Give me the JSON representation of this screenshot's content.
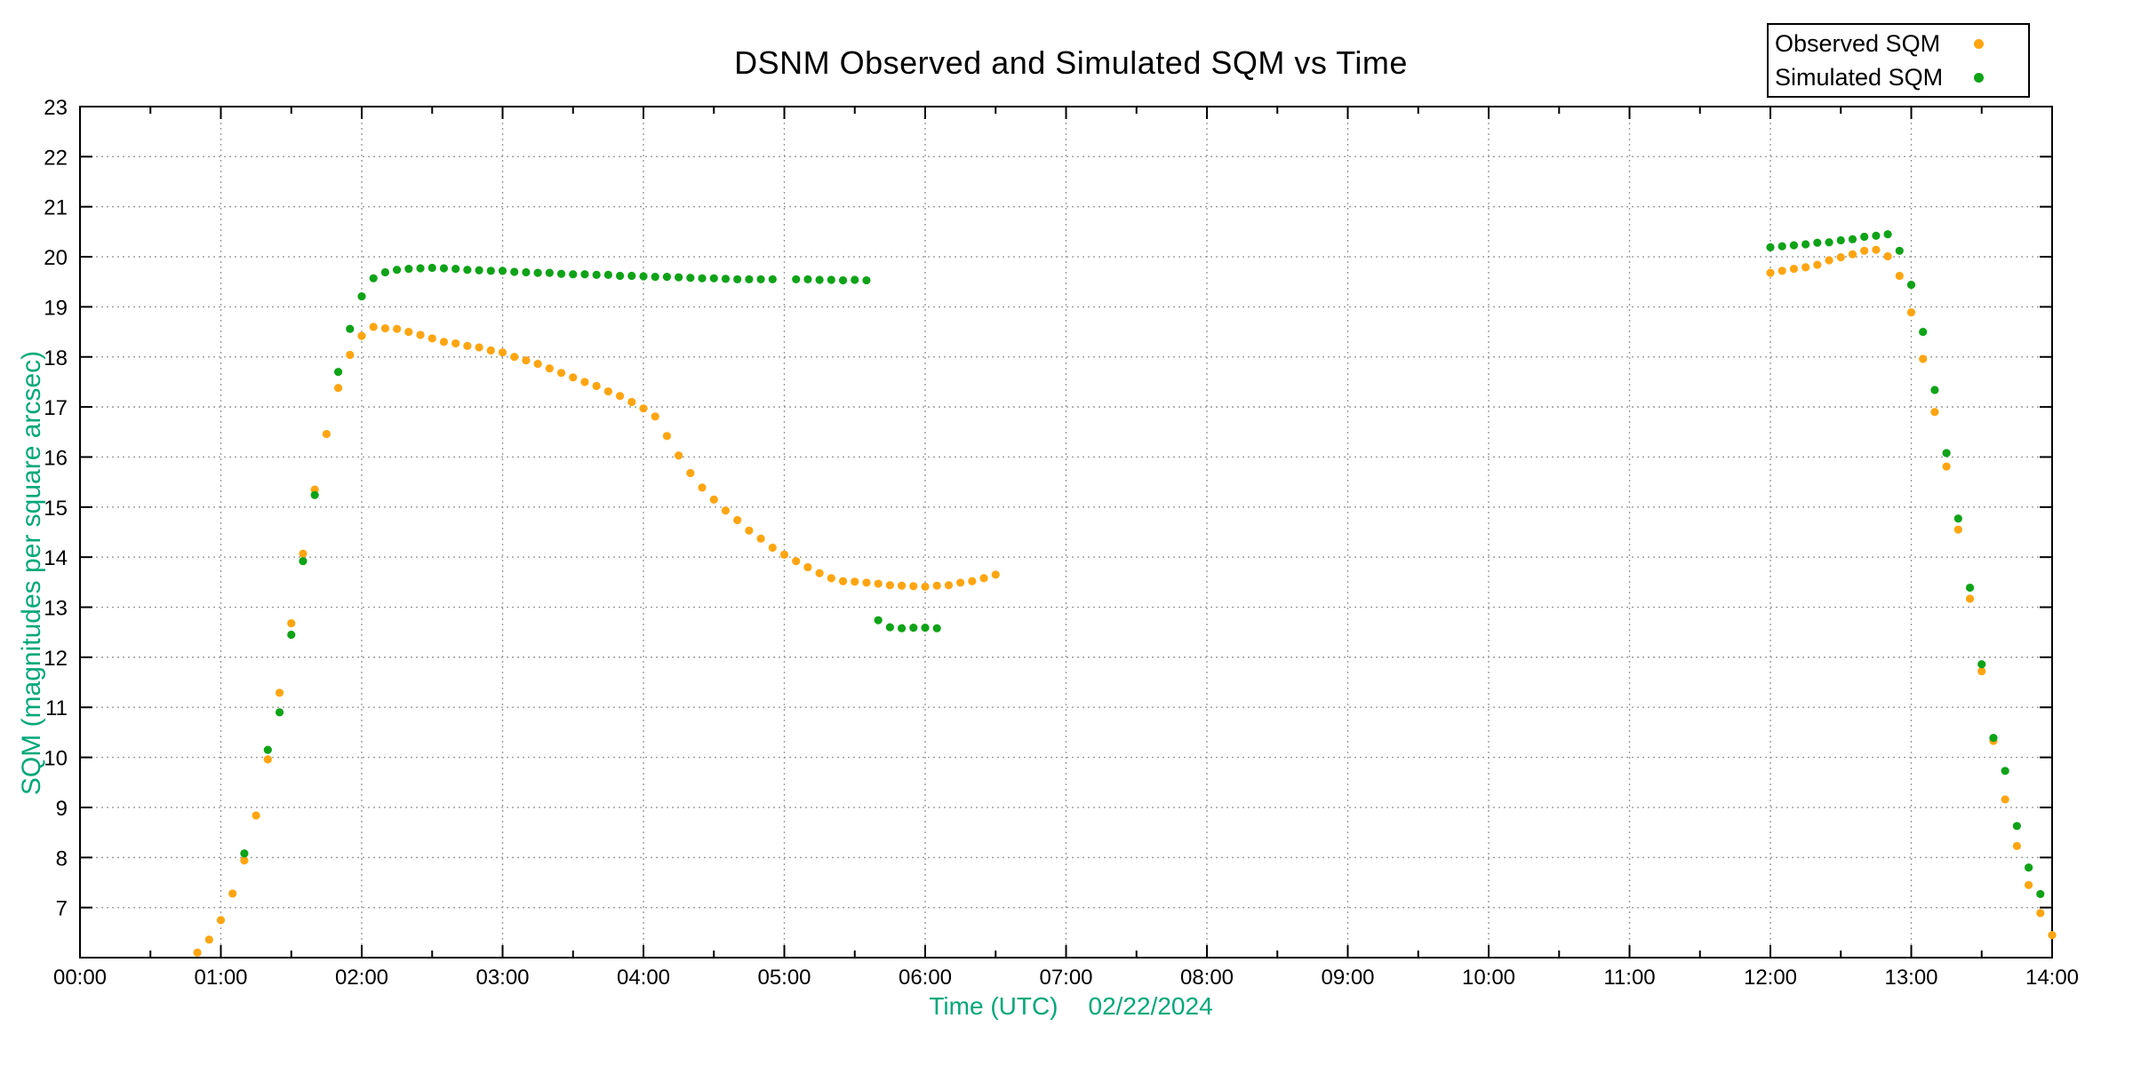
{
  "title": "DSNM Observed and Simulated SQM vs Time",
  "legend": [
    {
      "label": "Observed SQM",
      "color": "#ffa511"
    },
    {
      "label": "Simulated SQM",
      "color": "#0fa317"
    }
  ],
  "axes": {
    "x_label_prefix": "Time (UTC)",
    "x_label_date": "02/22/2024",
    "y_label": "SQM (magnitudes per square arcsec)",
    "x_ticks": [
      "00:00",
      "01:00",
      "02:00",
      "03:00",
      "04:00",
      "05:00",
      "06:00",
      "07:00",
      "08:00",
      "09:00",
      "10:00",
      "11:00",
      "12:00",
      "13:00",
      "14:00"
    ],
    "y_ticks": [
      7,
      8,
      9,
      10,
      11,
      12,
      13,
      14,
      15,
      16,
      17,
      18,
      19,
      20,
      21,
      22,
      23
    ]
  },
  "colors": {
    "axis_label": "#00a878",
    "grid": "#9c9c9c",
    "border": "#000000",
    "tick_text": "#000000"
  },
  "chart_data": {
    "type": "scatter",
    "title": "DSNM Observed and Simulated SQM vs Time",
    "xlabel": "Time (UTC)   02/22/2024",
    "ylabel": "SQM (magnitudes per square arcsec)",
    "x_unit": "HH:MM UTC",
    "xlim_hours": [
      0,
      14
    ],
    "ylim": [
      6,
      23
    ],
    "grid": "dotted, at hour and integer-magnitude lines",
    "legend_position": "top-right, outside plot",
    "series": [
      {
        "name": "Observed SQM",
        "color": "#ffa511",
        "marker": "filled-circle",
        "points": [
          [
            "00:50",
            6.1
          ],
          [
            "00:55",
            6.36
          ],
          [
            "01:00",
            6.75
          ],
          [
            "01:05",
            7.28
          ],
          [
            "01:10",
            7.94
          ],
          [
            "01:15",
            8.84
          ],
          [
            "01:20",
            9.96
          ],
          [
            "01:25",
            11.29
          ],
          [
            "01:30",
            12.68
          ],
          [
            "01:35",
            14.07
          ],
          [
            "01:40",
            15.35
          ],
          [
            "01:45",
            16.46
          ],
          [
            "01:50",
            17.38
          ],
          [
            "01:55",
            18.04
          ],
          [
            "02:00",
            18.42
          ],
          [
            "02:05",
            18.6
          ],
          [
            "02:10",
            18.57
          ],
          [
            "02:15",
            18.56
          ],
          [
            "02:20",
            18.5
          ],
          [
            "02:25",
            18.44
          ],
          [
            "02:30",
            18.37
          ],
          [
            "02:35",
            18.3
          ],
          [
            "02:40",
            18.27
          ],
          [
            "02:45",
            18.22
          ],
          [
            "02:50",
            18.19
          ],
          [
            "02:55",
            18.13
          ],
          [
            "03:00",
            18.09
          ],
          [
            "03:05",
            18.0
          ],
          [
            "03:10",
            17.93
          ],
          [
            "03:15",
            17.86
          ],
          [
            "03:20",
            17.77
          ],
          [
            "03:25",
            17.68
          ],
          [
            "03:30",
            17.59
          ],
          [
            "03:35",
            17.5
          ],
          [
            "03:40",
            17.42
          ],
          [
            "03:45",
            17.31
          ],
          [
            "03:50",
            17.22
          ],
          [
            "03:55",
            17.1
          ],
          [
            "04:00",
            16.97
          ],
          [
            "04:05",
            16.81
          ],
          [
            "04:10",
            16.42
          ],
          [
            "04:15",
            16.03
          ],
          [
            "04:20",
            15.68
          ],
          [
            "04:25",
            15.39
          ],
          [
            "04:30",
            15.15
          ],
          [
            "04:35",
            14.93
          ],
          [
            "04:40",
            14.74
          ],
          [
            "04:45",
            14.53
          ],
          [
            "04:50",
            14.37
          ],
          [
            "04:55",
            14.19
          ],
          [
            "05:00",
            14.05
          ],
          [
            "05:05",
            13.92
          ],
          [
            "05:10",
            13.8
          ],
          [
            "05:15",
            13.68
          ],
          [
            "05:20",
            13.58
          ],
          [
            "05:25",
            13.52
          ],
          [
            "05:30",
            13.51
          ],
          [
            "05:35",
            13.49
          ],
          [
            "05:40",
            13.47
          ],
          [
            "05:45",
            13.44
          ],
          [
            "05:50",
            13.43
          ],
          [
            "05:55",
            13.42
          ],
          [
            "06:00",
            13.41
          ],
          [
            "06:05",
            13.43
          ],
          [
            "06:10",
            13.44
          ],
          [
            "06:15",
            13.49
          ],
          [
            "06:20",
            13.52
          ],
          [
            "06:25",
            13.58
          ],
          [
            "06:30",
            13.65
          ],
          [
            "12:00",
            19.68
          ],
          [
            "12:05",
            19.72
          ],
          [
            "12:10",
            19.76
          ],
          [
            "12:15",
            19.79
          ],
          [
            "12:20",
            19.84
          ],
          [
            "12:25",
            19.93
          ],
          [
            "12:30",
            19.99
          ],
          [
            "12:35",
            20.05
          ],
          [
            "12:40",
            20.12
          ],
          [
            "12:45",
            20.14
          ],
          [
            "12:50",
            20.01
          ],
          [
            "12:55",
            19.62
          ],
          [
            "13:00",
            18.89
          ],
          [
            "13:05",
            17.96
          ],
          [
            "13:10",
            16.9
          ],
          [
            "13:15",
            15.81
          ],
          [
            "13:20",
            14.55
          ],
          [
            "13:25",
            13.17
          ],
          [
            "13:30",
            11.72
          ],
          [
            "13:35",
            10.33
          ],
          [
            "13:40",
            9.16
          ],
          [
            "13:45",
            8.23
          ],
          [
            "13:50",
            7.45
          ],
          [
            "13:55",
            6.89
          ],
          [
            "14:00",
            6.45
          ]
        ]
      },
      {
        "name": "Simulated SQM",
        "color": "#0fa317",
        "marker": "filled-circle",
        "points": [
          [
            "01:10",
            8.08
          ],
          [
            "01:20",
            10.15
          ],
          [
            "01:25",
            10.9
          ],
          [
            "01:30",
            12.45
          ],
          [
            "01:35",
            13.92
          ],
          [
            "01:40",
            15.24
          ],
          [
            "01:50",
            17.7
          ],
          [
            "01:55",
            18.56
          ],
          [
            "02:00",
            19.21
          ],
          [
            "02:05",
            19.57
          ],
          [
            "02:10",
            19.69
          ],
          [
            "02:15",
            19.74
          ],
          [
            "02:20",
            19.76
          ],
          [
            "02:25",
            19.77
          ],
          [
            "02:30",
            19.78
          ],
          [
            "02:35",
            19.77
          ],
          [
            "02:40",
            19.76
          ],
          [
            "02:45",
            19.74
          ],
          [
            "02:50",
            19.73
          ],
          [
            "02:55",
            19.72
          ],
          [
            "03:00",
            19.72
          ],
          [
            "03:05",
            19.7
          ],
          [
            "03:10",
            19.69
          ],
          [
            "03:15",
            19.68
          ],
          [
            "03:20",
            19.68
          ],
          [
            "03:25",
            19.66
          ],
          [
            "03:30",
            19.65
          ],
          [
            "03:35",
            19.65
          ],
          [
            "03:40",
            19.64
          ],
          [
            "03:45",
            19.64
          ],
          [
            "03:50",
            19.62
          ],
          [
            "03:55",
            19.62
          ],
          [
            "04:00",
            19.61
          ],
          [
            "04:05",
            19.6
          ],
          [
            "04:10",
            19.6
          ],
          [
            "04:15",
            19.59
          ],
          [
            "04:20",
            19.58
          ],
          [
            "04:25",
            19.57
          ],
          [
            "04:30",
            19.57
          ],
          [
            "04:35",
            19.56
          ],
          [
            "04:40",
            19.55
          ],
          [
            "04:45",
            19.55
          ],
          [
            "04:50",
            19.55
          ],
          [
            "04:55",
            19.55
          ],
          [
            "05:05",
            19.55
          ],
          [
            "05:10",
            19.55
          ],
          [
            "05:15",
            19.54
          ],
          [
            "05:20",
            19.54
          ],
          [
            "05:25",
            19.53
          ],
          [
            "05:30",
            19.54
          ],
          [
            "05:35",
            19.53
          ],
          [
            "05:40",
            12.74
          ],
          [
            "05:45",
            12.6
          ],
          [
            "05:50",
            12.58
          ],
          [
            "05:55",
            12.59
          ],
          [
            "06:00",
            12.59
          ],
          [
            "06:05",
            12.58
          ],
          [
            "12:00",
            20.19
          ],
          [
            "12:05",
            20.21
          ],
          [
            "12:10",
            20.23
          ],
          [
            "12:15",
            20.25
          ],
          [
            "12:20",
            20.28
          ],
          [
            "12:25",
            20.29
          ],
          [
            "12:30",
            20.33
          ],
          [
            "12:35",
            20.35
          ],
          [
            "12:40",
            20.4
          ],
          [
            "12:45",
            20.42
          ],
          [
            "12:50",
            20.45
          ],
          [
            "12:55",
            20.12
          ],
          [
            "13:00",
            19.44
          ],
          [
            "13:05",
            18.5
          ],
          [
            "13:10",
            17.34
          ],
          [
            "13:15",
            16.08
          ],
          [
            "13:20",
            14.77
          ],
          [
            "13:25",
            13.39
          ],
          [
            "13:30",
            11.86
          ],
          [
            "13:35",
            10.39
          ],
          [
            "13:40",
            9.73
          ],
          [
            "13:45",
            8.63
          ],
          [
            "13:50",
            7.8
          ],
          [
            "13:55",
            7.27
          ]
        ]
      }
    ]
  }
}
